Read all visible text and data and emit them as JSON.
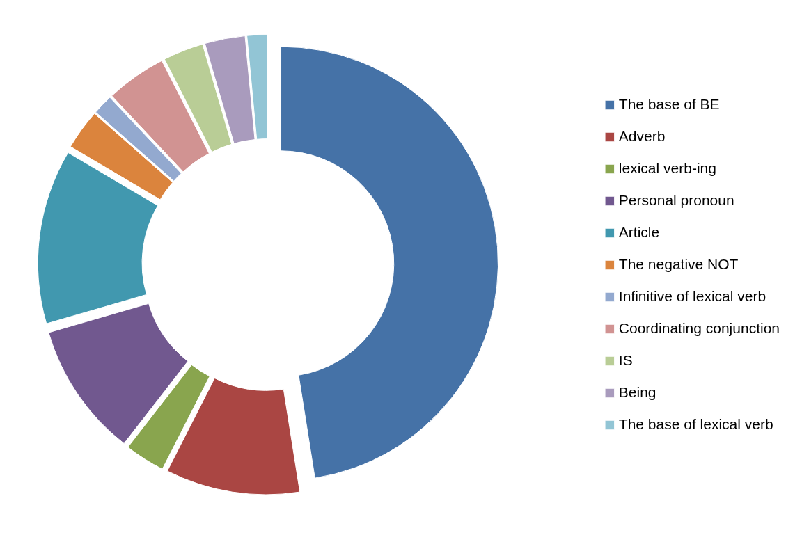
{
  "chart_data": {
    "type": "donut",
    "categories": [
      "The base of BE",
      "Adverb",
      "lexical verb-ing",
      "Personal pronoun",
      "Article",
      "The negative NOT",
      "Infinitive of lexical verb",
      "Coordinating conjunction",
      "IS",
      "Being",
      "The base of lexical verb"
    ],
    "values": [
      47.5,
      10,
      3,
      10,
      13,
      3,
      1.5,
      4.5,
      3,
      3,
      1.5
    ],
    "colors": [
      "#4572a7",
      "#aa4643",
      "#89a54e",
      "#71588f",
      "#4198af",
      "#db843d",
      "#93a9cf",
      "#d19392",
      "#b9cd96",
      "#a99bbd",
      "#92c5d5"
    ],
    "legend": "right"
  }
}
